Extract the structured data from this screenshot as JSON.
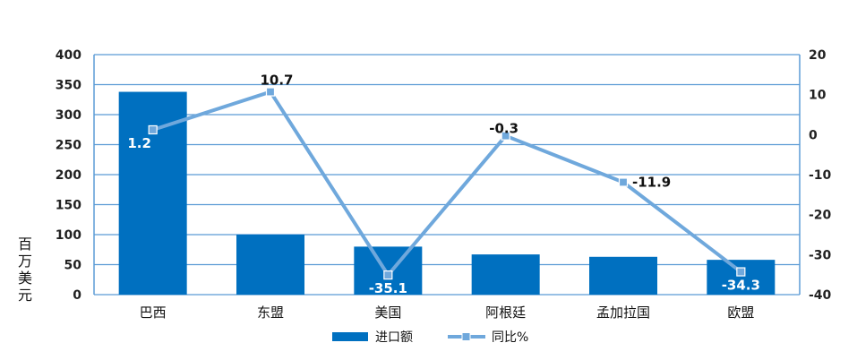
{
  "chart_data": {
    "type": "bar",
    "categories": [
      "巴西",
      "东盟",
      "美国",
      "阿根廷",
      "孟加拉国",
      "欧盟"
    ],
    "series": [
      {
        "name": "进口额",
        "type": "bar",
        "axis": "left",
        "values": [
          338,
          100,
          80,
          67,
          63,
          58
        ],
        "color": "#0070C0"
      },
      {
        "name": "同比%",
        "type": "line",
        "axis": "right",
        "values": [
          1.2,
          10.7,
          -35.1,
          -0.3,
          -11.9,
          -34.3
        ],
        "labels": [
          "1.2",
          "10.7",
          "-35.1",
          "-0.3",
          "-11.9",
          "-34.3"
        ],
        "color": "#6FA8DC"
      }
    ],
    "ylabel": "百万美元",
    "ylim": [
      0,
      400
    ],
    "yticks": [
      "0",
      "50",
      "100",
      "150",
      "200",
      "250",
      "300",
      "350",
      "400"
    ],
    "y2lim": [
      -40,
      20
    ],
    "y2ticks": [
      "-40",
      "-30",
      "-20",
      "-10",
      "0",
      "10",
      "20"
    ],
    "grid": true,
    "legend": "bottom"
  }
}
